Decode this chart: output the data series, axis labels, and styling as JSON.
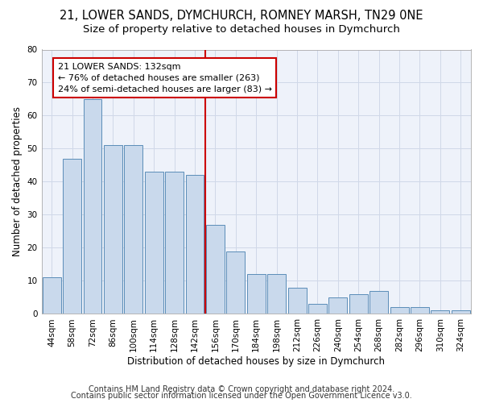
{
  "title1": "21, LOWER SANDS, DYMCHURCH, ROMNEY MARSH, TN29 0NE",
  "title2": "Size of property relative to detached houses in Dymchurch",
  "xlabel": "Distribution of detached houses by size in Dymchurch",
  "ylabel": "Number of detached properties",
  "bar_labels": [
    "44sqm",
    "58sqm",
    "72sqm",
    "86sqm",
    "100sqm",
    "114sqm",
    "128sqm",
    "142sqm",
    "156sqm",
    "170sqm",
    "184sqm",
    "198sqm",
    "212sqm",
    "226sqm",
    "240sqm",
    "254sqm",
    "268sqm",
    "282sqm",
    "296sqm",
    "310sqm",
    "324sqm"
  ],
  "bar_values": [
    11,
    47,
    65,
    51,
    51,
    43,
    43,
    42,
    27,
    19,
    12,
    12,
    8,
    3,
    5,
    6,
    7,
    2,
    2,
    1,
    1
  ],
  "bar_color": "#c9d9ec",
  "bar_edge_color": "#5b8db8",
  "vline_color": "#cc0000",
  "vline_x": 7.5,
  "annotation_text": "21 LOWER SANDS: 132sqm\n← 76% of detached houses are smaller (263)\n24% of semi-detached houses are larger (83) →",
  "annotation_box_color": "#ffffff",
  "annotation_box_edge_color": "#cc0000",
  "grid_color": "#d0d8e8",
  "background_color": "#eef2fa",
  "ylim": [
    0,
    80
  ],
  "yticks": [
    0,
    10,
    20,
    30,
    40,
    50,
    60,
    70,
    80
  ],
  "footer1": "Contains HM Land Registry data © Crown copyright and database right 2024.",
  "footer2": "Contains public sector information licensed under the Open Government Licence v3.0.",
  "title_fontsize": 10.5,
  "subtitle_fontsize": 9.5,
  "axis_label_fontsize": 8.5,
  "tick_fontsize": 7.5,
  "annotation_fontsize": 8,
  "footer_fontsize": 7
}
